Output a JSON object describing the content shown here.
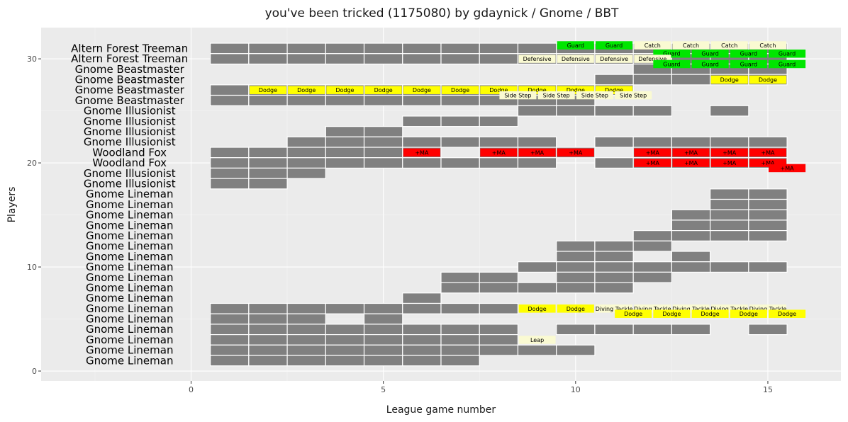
{
  "chart_data": {
    "type": "tile",
    "title": "you've been tricked (1175080) by gdaynick / Gnome / BBT",
    "xlabel": "League game number",
    "ylabel": "Players",
    "xlim": [
      -3.9,
      16.9
    ],
    "ylim": [
      -0.95,
      33.0
    ],
    "x_ticks": [
      0,
      5,
      10,
      15
    ],
    "y_ticks": [
      0,
      10,
      20,
      30
    ],
    "grid": true,
    "panel_background": "#ebebeb",
    "tile_color": "#808080",
    "colors": {
      "Guard": "#00e600",
      "Dodge": "#ffff00",
      "+MA": "#ff0000",
      "cream": "#fafad2"
    },
    "player_labels": [
      {
        "y": 31,
        "name": "Altern Forest Treeman"
      },
      {
        "y": 30,
        "name": "Altern Forest Treeman"
      },
      {
        "y": 29,
        "name": "Gnome Beastmaster"
      },
      {
        "y": 28,
        "name": "Gnome Beastmaster"
      },
      {
        "y": 27,
        "name": "Gnome Beastmaster"
      },
      {
        "y": 26,
        "name": "Gnome Beastmaster"
      },
      {
        "y": 25,
        "name": "Gnome Illusionist"
      },
      {
        "y": 24,
        "name": "Gnome Illusionist"
      },
      {
        "y": 23,
        "name": "Gnome Illusionist"
      },
      {
        "y": 22,
        "name": "Gnome Illusionist"
      },
      {
        "y": 21,
        "name": "Woodland Fox"
      },
      {
        "y": 20,
        "name": "Woodland Fox"
      },
      {
        "y": 19,
        "name": "Gnome Illusionist"
      },
      {
        "y": 18,
        "name": "Gnome Illusionist"
      },
      {
        "y": 17,
        "name": "Gnome Lineman"
      },
      {
        "y": 16,
        "name": "Gnome Lineman"
      },
      {
        "y": 15,
        "name": "Gnome Lineman"
      },
      {
        "y": 14,
        "name": "Gnome Lineman"
      },
      {
        "y": 13,
        "name": "Gnome Lineman"
      },
      {
        "y": 12,
        "name": "Gnome Lineman"
      },
      {
        "y": 11,
        "name": "Gnome Lineman"
      },
      {
        "y": 10,
        "name": "Gnome Lineman"
      },
      {
        "y": 9,
        "name": "Gnome Lineman"
      },
      {
        "y": 8,
        "name": "Gnome Lineman"
      },
      {
        "y": 7,
        "name": "Gnome Lineman"
      },
      {
        "y": 6,
        "name": "Gnome Lineman"
      },
      {
        "y": 5,
        "name": "Gnome Lineman"
      },
      {
        "y": 4,
        "name": "Gnome Lineman"
      },
      {
        "y": 3,
        "name": "Gnome Lineman"
      },
      {
        "y": 2,
        "name": "Gnome Lineman"
      },
      {
        "y": 1,
        "name": "Gnome Lineman"
      }
    ],
    "appearances": [
      {
        "y": 31,
        "games": [
          1,
          2,
          3,
          4,
          5,
          6,
          7,
          8,
          9,
          10,
          11,
          12,
          13,
          14,
          15
        ]
      },
      {
        "y": 30,
        "games": [
          1,
          2,
          3,
          4,
          5,
          6,
          7,
          8,
          9,
          10,
          11,
          12,
          13,
          14,
          15
        ]
      },
      {
        "y": 29,
        "games": [
          12,
          13,
          14,
          15
        ]
      },
      {
        "y": 28,
        "games": [
          11,
          12,
          13,
          14,
          15
        ]
      },
      {
        "y": 27,
        "games": [
          1,
          2,
          3,
          4,
          5,
          6,
          7,
          8,
          9,
          10,
          11
        ]
      },
      {
        "y": 26,
        "games": [
          1,
          2,
          3,
          4,
          5,
          6,
          7,
          8,
          9,
          10
        ]
      },
      {
        "y": 25,
        "games": [
          9,
          10,
          11,
          12,
          14
        ]
      },
      {
        "y": 24,
        "games": [
          6,
          7,
          8
        ]
      },
      {
        "y": 23,
        "games": [
          4,
          5
        ]
      },
      {
        "y": 22,
        "games": [
          3,
          4,
          5,
          6,
          7,
          8,
          9,
          11,
          12,
          13,
          14,
          15
        ]
      },
      {
        "y": 21,
        "games": [
          1,
          2,
          3,
          4,
          5,
          6,
          8,
          9,
          10,
          12,
          13,
          14,
          15
        ]
      },
      {
        "y": 20,
        "games": [
          1,
          2,
          3,
          4,
          5,
          6,
          7,
          8,
          9,
          11,
          12,
          13,
          14,
          15
        ]
      },
      {
        "y": 19,
        "games": [
          1,
          2,
          3
        ]
      },
      {
        "y": 18,
        "games": [
          1,
          2
        ]
      },
      {
        "y": 17,
        "games": [
          14,
          15
        ]
      },
      {
        "y": 16,
        "games": [
          14,
          15
        ]
      },
      {
        "y": 15,
        "games": [
          13,
          14,
          15
        ]
      },
      {
        "y": 14,
        "games": [
          13,
          14,
          15
        ]
      },
      {
        "y": 13,
        "games": [
          12,
          13,
          14,
          15
        ]
      },
      {
        "y": 12,
        "games": [
          10,
          11,
          12
        ]
      },
      {
        "y": 11,
        "games": [
          10,
          11,
          13
        ]
      },
      {
        "y": 10,
        "games": [
          9,
          10,
          11,
          12,
          13,
          14,
          15
        ]
      },
      {
        "y": 9,
        "games": [
          7,
          8,
          10,
          11,
          12
        ]
      },
      {
        "y": 8,
        "games": [
          7,
          8,
          9,
          10,
          11
        ]
      },
      {
        "y": 7,
        "games": [
          6
        ]
      },
      {
        "y": 6,
        "games": [
          1,
          2,
          3,
          4,
          5,
          6,
          7,
          8
        ]
      },
      {
        "y": 5,
        "games": [
          1,
          2,
          3,
          5
        ]
      },
      {
        "y": 4,
        "games": [
          1,
          2,
          3,
          4,
          5,
          6,
          7,
          8,
          10,
          11,
          12,
          13,
          15
        ]
      },
      {
        "y": 3,
        "games": [
          1,
          2,
          3,
          4,
          5,
          6,
          7,
          8
        ]
      },
      {
        "y": 2,
        "games": [
          1,
          2,
          3,
          4,
          5,
          6,
          7,
          8,
          9,
          10
        ]
      },
      {
        "y": 1,
        "games": [
          1,
          2,
          3,
          4,
          5,
          6,
          7
        ]
      }
    ],
    "skills": [
      {
        "x": 10,
        "y": 31.3,
        "label": "Guard",
        "color": "Guard"
      },
      {
        "x": 11,
        "y": 31.3,
        "label": "Guard",
        "color": "Guard"
      },
      {
        "x": 12,
        "y": 31.3,
        "label": "Catch",
        "color": "cream"
      },
      {
        "x": 13,
        "y": 31.3,
        "label": "Catch",
        "color": "cream"
      },
      {
        "x": 14,
        "y": 31.3,
        "label": "Catch",
        "color": "cream"
      },
      {
        "x": 15,
        "y": 31.3,
        "label": "Catch",
        "color": "cream"
      },
      {
        "x": 12.5,
        "y": 30.5,
        "label": "Guard",
        "color": "Guard"
      },
      {
        "x": 13.5,
        "y": 30.5,
        "label": "Guard",
        "color": "Guard"
      },
      {
        "x": 14.5,
        "y": 30.5,
        "label": "Guard",
        "color": "Guard"
      },
      {
        "x": 15.5,
        "y": 30.5,
        "label": "Guard",
        "color": "Guard"
      },
      {
        "x": 9,
        "y": 30,
        "label": "Defensive",
        "color": "cream"
      },
      {
        "x": 10,
        "y": 30,
        "label": "Defensive",
        "color": "cream"
      },
      {
        "x": 11,
        "y": 30,
        "label": "Defensive",
        "color": "cream"
      },
      {
        "x": 12,
        "y": 30,
        "label": "Defensive",
        "color": "cream"
      },
      {
        "x": 12.5,
        "y": 29.5,
        "label": "Guard",
        "color": "Guard"
      },
      {
        "x": 13.5,
        "y": 29.5,
        "label": "Guard",
        "color": "Guard"
      },
      {
        "x": 14.5,
        "y": 29.5,
        "label": "Guard",
        "color": "Guard"
      },
      {
        "x": 15.5,
        "y": 29.5,
        "label": "Guard",
        "color": "Guard"
      },
      {
        "x": 14,
        "y": 28,
        "label": "Dodge",
        "color": "Dodge"
      },
      {
        "x": 15,
        "y": 28,
        "label": "Dodge",
        "color": "Dodge"
      },
      {
        "x": 2,
        "y": 27,
        "label": "Dodge",
        "color": "Dodge"
      },
      {
        "x": 3,
        "y": 27,
        "label": "Dodge",
        "color": "Dodge"
      },
      {
        "x": 4,
        "y": 27,
        "label": "Dodge",
        "color": "Dodge"
      },
      {
        "x": 5,
        "y": 27,
        "label": "Dodge",
        "color": "Dodge"
      },
      {
        "x": 6,
        "y": 27,
        "label": "Dodge",
        "color": "Dodge"
      },
      {
        "x": 7,
        "y": 27,
        "label": "Dodge",
        "color": "Dodge"
      },
      {
        "x": 8,
        "y": 27,
        "label": "Dodge",
        "color": "Dodge"
      },
      {
        "x": 9,
        "y": 27,
        "label": "Dodge",
        "color": "Dodge"
      },
      {
        "x": 10,
        "y": 27,
        "label": "Dodge",
        "color": "Dodge"
      },
      {
        "x": 11,
        "y": 27,
        "label": "Dodge",
        "color": "Dodge"
      },
      {
        "x": 8.5,
        "y": 26.5,
        "label": "Side Step",
        "color": "cream"
      },
      {
        "x": 9.5,
        "y": 26.5,
        "label": "Side Step",
        "color": "cream"
      },
      {
        "x": 10.5,
        "y": 26.5,
        "label": "Side Step",
        "color": "cream"
      },
      {
        "x": 11.5,
        "y": 26.5,
        "label": "Side Step",
        "color": "cream"
      },
      {
        "x": 6,
        "y": 21,
        "label": "+MA",
        "color": "+MA"
      },
      {
        "x": 8,
        "y": 21,
        "label": "+MA",
        "color": "+MA"
      },
      {
        "x": 9,
        "y": 21,
        "label": "+MA",
        "color": "+MA"
      },
      {
        "x": 10,
        "y": 21,
        "label": "+MA",
        "color": "+MA"
      },
      {
        "x": 12,
        "y": 21,
        "label": "+MA",
        "color": "+MA"
      },
      {
        "x": 13,
        "y": 21,
        "label": "+MA",
        "color": "+MA"
      },
      {
        "x": 14,
        "y": 21,
        "label": "+MA",
        "color": "+MA"
      },
      {
        "x": 15,
        "y": 21,
        "label": "+MA",
        "color": "+MA"
      },
      {
        "x": 12,
        "y": 20,
        "label": "+MA",
        "color": "+MA"
      },
      {
        "x": 13,
        "y": 20,
        "label": "+MA",
        "color": "+MA"
      },
      {
        "x": 14,
        "y": 20,
        "label": "+MA",
        "color": "+MA"
      },
      {
        "x": 15,
        "y": 20,
        "label": "+MA",
        "color": "+MA"
      },
      {
        "x": 15.5,
        "y": 19.5,
        "label": "+MA",
        "color": "+MA"
      },
      {
        "x": 9,
        "y": 6,
        "label": "Dodge",
        "color": "Dodge"
      },
      {
        "x": 10,
        "y": 6,
        "label": "Dodge",
        "color": "Dodge"
      },
      {
        "x": 11,
        "y": 6,
        "label": "Diving Tackle",
        "color": "cream"
      },
      {
        "x": 12,
        "y": 6,
        "label": "Diving Tackle",
        "color": "cream"
      },
      {
        "x": 13,
        "y": 6,
        "label": "Diving Tackle",
        "color": "cream"
      },
      {
        "x": 14,
        "y": 6,
        "label": "Diving Tackle",
        "color": "cream"
      },
      {
        "x": 15,
        "y": 6,
        "label": "Diving Tackle",
        "color": "cream"
      },
      {
        "x": 11.5,
        "y": 5.5,
        "label": "Dodge",
        "color": "Dodge"
      },
      {
        "x": 12.5,
        "y": 5.5,
        "label": "Dodge",
        "color": "Dodge"
      },
      {
        "x": 13.5,
        "y": 5.5,
        "label": "Dodge",
        "color": "Dodge"
      },
      {
        "x": 14.5,
        "y": 5.5,
        "label": "Dodge",
        "color": "Dodge"
      },
      {
        "x": 15.5,
        "y": 5.5,
        "label": "Dodge",
        "color": "Dodge"
      },
      {
        "x": 9,
        "y": 3,
        "label": "Leap",
        "color": "cream"
      }
    ]
  }
}
